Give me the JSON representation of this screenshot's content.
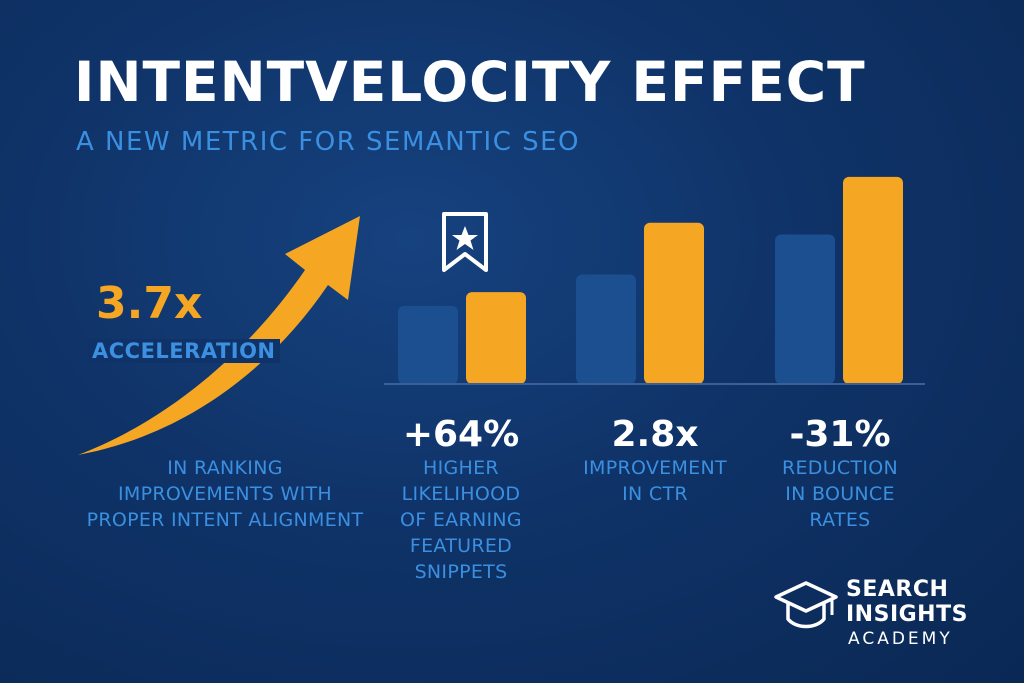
{
  "header": {
    "title": "INTENTVELOCITY EFFECT",
    "subtitle": "A NEW METRIC FOR SEMANTIC SEO"
  },
  "acceleration": {
    "value": "3.7x",
    "label": "ACCELERATION",
    "description": [
      "IN RANKING",
      "IMPROVEMENTS WITH",
      "PROPER INTENT ALIGNMENT"
    ]
  },
  "stats": [
    {
      "value": "+64%",
      "lines": [
        "HIGHER",
        "LIKELIHOOD",
        "OF EARNING",
        "FEATURED",
        "SNIPPETS"
      ]
    },
    {
      "value": "2.8x",
      "lines": [
        "IMPROVEMENT",
        "IN CTR"
      ]
    },
    {
      "value": "-31%",
      "lines": [
        "REDUCTION",
        "IN BOUNCE",
        "RATES"
      ]
    }
  ],
  "logo": {
    "line1": "SEARCH",
    "line2": "INSIGHTS",
    "line3": "ACADEMY"
  },
  "colors": {
    "background": "#0f3368",
    "accent_orange": "#f5a623",
    "accent_blue": "#3b8fe0",
    "bar_blue": "#1b4f8f",
    "text_white": "#ffffff"
  },
  "icons": [
    "upward-arrow-icon",
    "bookmark-star-icon",
    "graduation-cap-icon"
  ],
  "chart_data": {
    "type": "bar",
    "categories": [
      "+64%",
      "2.8x",
      "-31%"
    ],
    "series": [
      {
        "color": "#1b4f8f",
        "values": [
          80,
          112,
          153
        ]
      },
      {
        "color": "#f5a623",
        "values": [
          94,
          165,
          212
        ]
      }
    ],
    "ylim": [
      0,
      220
    ],
    "grid": false
  }
}
